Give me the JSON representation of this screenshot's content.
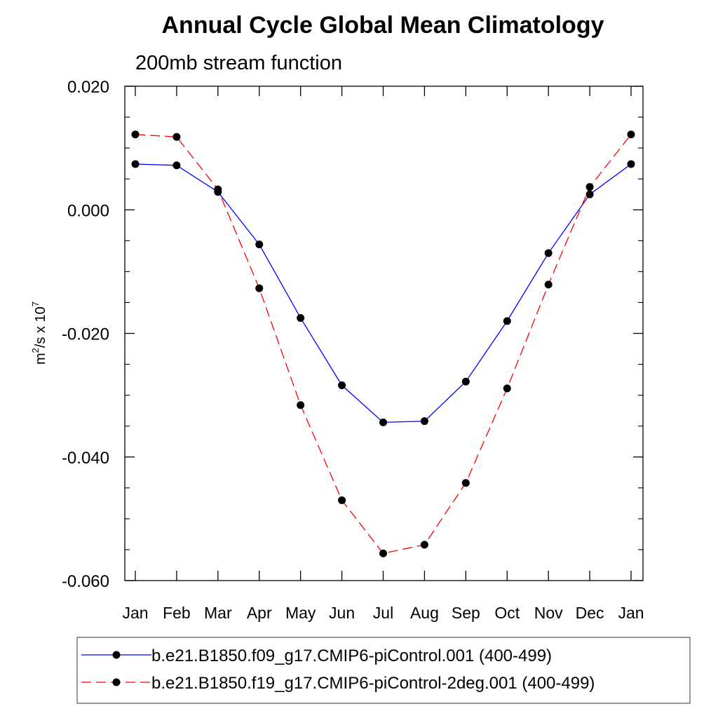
{
  "chart_data": {
    "type": "line",
    "title": "Annual Cycle Global Mean Climatology",
    "subtitle": "200mb stream function",
    "ylabel": {
      "base": "m",
      "base_sup": "2",
      "mid": "/s x 10",
      "mid_sup": "7"
    },
    "ylim": [
      -0.06,
      0.02
    ],
    "yticks": [
      0.02,
      0.0,
      -0.02,
      -0.04,
      -0.06
    ],
    "ytick_labels": [
      "0.020",
      "0.000",
      "-0.020",
      "-0.040",
      "-0.060"
    ],
    "categories": [
      "Jan",
      "Feb",
      "Mar",
      "Apr",
      "May",
      "Jun",
      "Jul",
      "Aug",
      "Sep",
      "Oct",
      "Nov",
      "Dec",
      "Jan"
    ],
    "grid": false,
    "legend_position": "bottom",
    "series": [
      {
        "name": "b.e21.B1850.f09_g17.CMIP6-piControl.001 (400-499)",
        "color": "#0000ff",
        "dash": "solid",
        "values": [
          0.0074,
          0.0072,
          0.0029,
          -0.0056,
          -0.0175,
          -0.0284,
          -0.0344,
          -0.0342,
          -0.0278,
          -0.018,
          -0.007,
          0.0025,
          0.0074
        ]
      },
      {
        "name": "b.e21.B1850.f19_g17.CMIP6-piControl-2deg.001 (400-499)",
        "color": "#ff0000",
        "dash": "dashed",
        "values": [
          0.0122,
          0.0118,
          0.0033,
          -0.0127,
          -0.0316,
          -0.047,
          -0.0556,
          -0.0542,
          -0.0442,
          -0.0289,
          -0.0121,
          0.0037,
          0.0122
        ]
      }
    ]
  }
}
